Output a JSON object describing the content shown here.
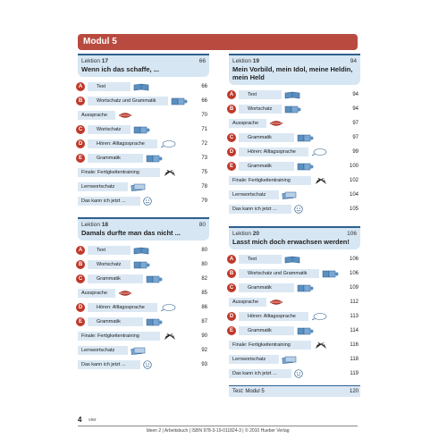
{
  "module_title": "Modul 5",
  "lessons": [
    {
      "label": "Lektion",
      "number": "17",
      "page": "66",
      "title": "Wenn ich das schaffe, ...",
      "items": [
        {
          "badge": "A",
          "label": "Text",
          "icon": "book-icon",
          "page": "66"
        },
        {
          "badge": "B",
          "label": "Wortschatz und Grammatik",
          "icon": "puzzle-icon",
          "page": "66"
        },
        {
          "badge": "",
          "label": "Aussprache",
          "icon": "mouth-icon",
          "page": "70"
        },
        {
          "badge": "C",
          "label": "Wortschatz",
          "icon": "puzzle-icon",
          "page": "71"
        },
        {
          "badge": "D",
          "label": "Hören: Alltagssprache",
          "icon": "speech-bubble-icon",
          "page": "72"
        },
        {
          "badge": "E",
          "label": "Grammatik",
          "icon": "puzzle-icon",
          "page": "73"
        },
        {
          "badge": "",
          "label": "Finale: Fertigkeitentraining",
          "icon": "flags-icon",
          "page": "75"
        },
        {
          "badge": "",
          "label": "Lernwortschatz",
          "icon": "card-stack-icon",
          "page": "78"
        },
        {
          "badge": "",
          "label": "Das kann ich jetzt ...",
          "icon": "smiley-icon",
          "page": "79"
        }
      ]
    },
    {
      "label": "Lektion",
      "number": "18",
      "page": "80",
      "title": "Damals durfte man das nicht ...",
      "items": [
        {
          "badge": "A",
          "label": "Text",
          "icon": "book-icon",
          "page": "80"
        },
        {
          "badge": "B",
          "label": "Wortschatz",
          "icon": "puzzle-icon",
          "page": "80"
        },
        {
          "badge": "C",
          "label": "Grammatik",
          "icon": "puzzle-icon",
          "page": "82"
        },
        {
          "badge": "",
          "label": "Aussprache",
          "icon": "mouth-icon",
          "page": "85"
        },
        {
          "badge": "D",
          "label": "Hören: Alltagssprache",
          "icon": "speech-bubble-icon",
          "page": "86"
        },
        {
          "badge": "E",
          "label": "Grammatik",
          "icon": "puzzle-icon",
          "page": "87"
        },
        {
          "badge": "",
          "label": "Finale: Fertigkeitentraining",
          "icon": "flags-icon",
          "page": "90"
        },
        {
          "badge": "",
          "label": "Lernwortschatz",
          "icon": "card-stack-icon",
          "page": "92"
        },
        {
          "badge": "",
          "label": "Das kann ich jetzt ...",
          "icon": "smiley-icon",
          "page": "93"
        }
      ]
    },
    {
      "label": "Lektion",
      "number": "19",
      "page": "94",
      "title": "Mein Vorbild, mein Idol, meine Heldin, mein Held",
      "items": [
        {
          "badge": "A",
          "label": "Text",
          "icon": "book-icon",
          "page": "94"
        },
        {
          "badge": "B",
          "label": "Wortschatz",
          "icon": "puzzle-icon",
          "page": "94"
        },
        {
          "badge": "",
          "label": "Aussprache",
          "icon": "mouth-icon",
          "page": "97"
        },
        {
          "badge": "C",
          "label": "Grammatik",
          "icon": "puzzle-icon",
          "page": "97"
        },
        {
          "badge": "D",
          "label": "Hören: Alltagssprache",
          "icon": "speech-bubble-icon",
          "page": "99"
        },
        {
          "badge": "E",
          "label": "Grammatik",
          "icon": "puzzle-icon",
          "page": "100"
        },
        {
          "badge": "",
          "label": "Finale: Fertigkeitentraining",
          "icon": "flags-icon",
          "page": "102"
        },
        {
          "badge": "",
          "label": "Lernwortschatz",
          "icon": "card-stack-icon",
          "page": "104"
        },
        {
          "badge": "",
          "label": "Das kann ich jetzt ...",
          "icon": "smiley-icon",
          "page": "105"
        }
      ]
    },
    {
      "label": "Lektion",
      "number": "20",
      "page": "106",
      "title": "Lasst mich doch erwachsen werden!",
      "items": [
        {
          "badge": "A",
          "label": "Text",
          "icon": "book-icon",
          "page": "106"
        },
        {
          "badge": "B",
          "label": "Wortschatz und Grammatik",
          "icon": "puzzle-icon",
          "page": "106"
        },
        {
          "badge": "C",
          "label": "Grammatik",
          "icon": "puzzle-icon",
          "page": "109"
        },
        {
          "badge": "",
          "label": "Aussprache",
          "icon": "mouth-icon",
          "page": "112"
        },
        {
          "badge": "D",
          "label": "Hören: Alltagssprache",
          "icon": "speech-bubble-icon",
          "page": "113"
        },
        {
          "badge": "E",
          "label": "Grammatik",
          "icon": "puzzle-icon",
          "page": "114"
        },
        {
          "badge": "",
          "label": "Finale: Fertigkeitentraining",
          "icon": "flags-icon",
          "page": "116"
        },
        {
          "badge": "",
          "label": "Lernwortschatz",
          "icon": "card-stack-icon",
          "page": "118"
        },
        {
          "badge": "",
          "label": "Das kann ich jetzt ...",
          "icon": "smiley-icon",
          "page": "119"
        }
      ]
    }
  ],
  "test": {
    "label": "Test: Modul 5",
    "page": "120"
  },
  "footer": {
    "page_number": "4",
    "page_word": "vier",
    "imprint": "Ideen 2 | Arbeitsbuch | ISBN 978-3-19-011824-3 | © 2010 Hueber Verlag"
  },
  "colors": {
    "banner": "#b94a3f",
    "badge": "#c0392b",
    "bar": "#dbe8f4",
    "header": "#d6e6f3",
    "rule": "#2f5f8f"
  }
}
